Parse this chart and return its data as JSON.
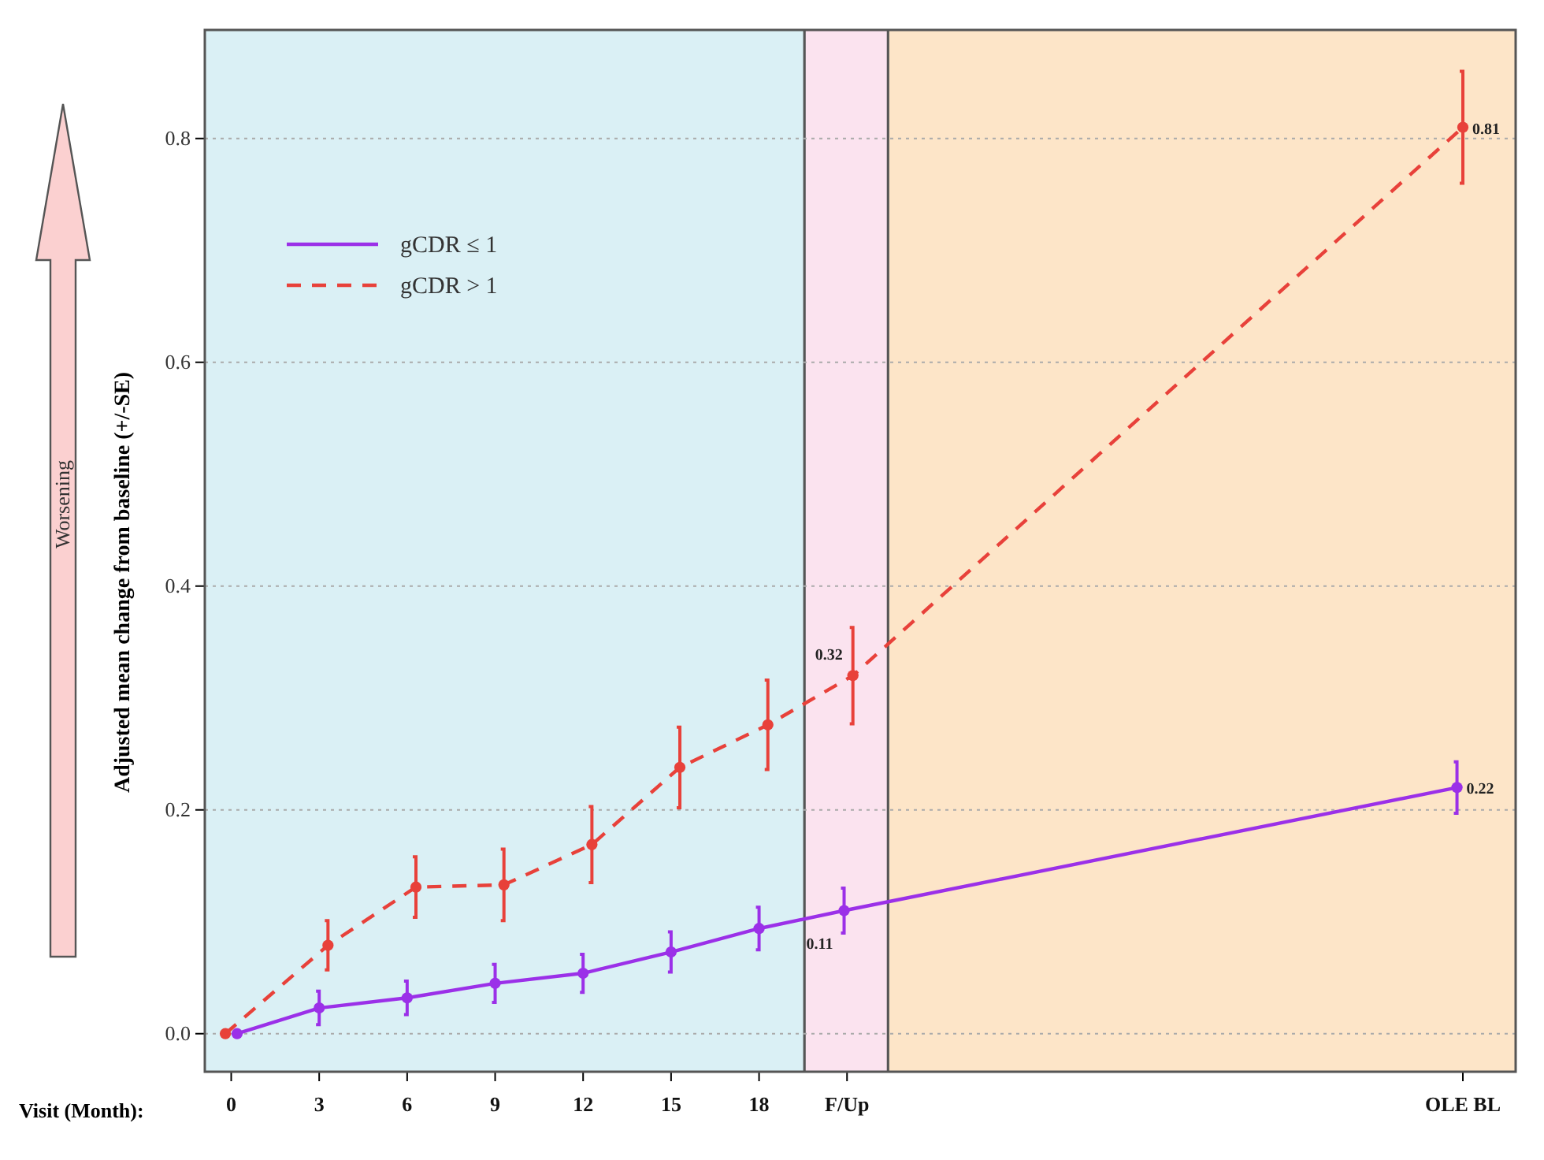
{
  "chart_data": {
    "type": "line",
    "xlabel": "Visit (Month):",
    "ylabel": "Adjusted mean change from baseline (+/-SE)",
    "annotations": [
      "Worsening"
    ],
    "xlim": [
      -0.9,
      43.8
    ],
    "ylim": [
      -0.034,
      0.897
    ],
    "xticks": [
      0,
      3,
      6,
      9,
      12,
      15,
      18,
      {
        "value": 21,
        "label": "F/Up"
      },
      {
        "value": 42,
        "label": "OLE BL"
      }
    ],
    "yticks": [
      {
        "value": 0,
        "label": "0.0"
      },
      0.2,
      0.4,
      0.6,
      0.8
    ],
    "grid": "y",
    "legend": "top left",
    "marker": "circle",
    "bands": [
      {
        "axis": "x",
        "from": -0.9,
        "to": 19.55,
        "color": "#daf0f5"
      },
      {
        "axis": "x",
        "from": 19.55,
        "to": 22.4,
        "color": "#fbe3ef"
      },
      {
        "axis": "x",
        "from": 22.4,
        "to": 43.8,
        "color": "#fde5c8"
      }
    ],
    "series": [
      {
        "name": "gCDR ≤ 1",
        "color": "#9b30e8",
        "line_style": "solid",
        "x": [
          0.2,
          3,
          6,
          9,
          12,
          15,
          18,
          20.9,
          41.8
        ],
        "values": [
          0,
          0.023,
          0.032,
          0.045,
          0.054,
          0.073,
          0.094,
          0.11,
          0.22
        ],
        "errors": [
          0,
          0.015,
          0.015,
          0.017,
          0.017,
          0.018,
          0.019,
          0.02,
          0.023
        ],
        "value_labels": [
          null,
          null,
          null,
          null,
          null,
          null,
          null,
          "0.11",
          "0.22"
        ]
      },
      {
        "name": "gCDR > 1",
        "color": "#e8413a",
        "line_style": "dashed",
        "x": [
          -0.2,
          3.3,
          6.3,
          9.3,
          12.3,
          15.3,
          18.3,
          21.2,
          42
        ],
        "values": [
          0,
          0.079,
          0.131,
          0.133,
          0.169,
          0.238,
          0.276,
          0.32,
          0.81
        ],
        "errors": [
          0,
          0.022,
          0.027,
          0.032,
          0.034,
          0.036,
          0.04,
          0.043,
          0.05
        ],
        "value_labels": [
          null,
          null,
          null,
          null,
          null,
          null,
          null,
          "0.32",
          "0.81"
        ]
      }
    ]
  }
}
